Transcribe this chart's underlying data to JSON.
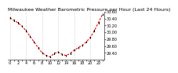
{
  "title": "Milwaukee Weather Barometric Pressure per Hour (Last 24 Hours)",
  "hours": [
    0,
    1,
    2,
    3,
    4,
    5,
    6,
    7,
    8,
    9,
    10,
    11,
    12,
    13,
    14,
    15,
    16,
    17,
    18,
    19,
    20,
    21,
    22,
    23
  ],
  "pressure": [
    30.42,
    30.35,
    30.28,
    30.18,
    30.05,
    29.88,
    29.72,
    29.55,
    29.4,
    29.32,
    29.28,
    29.38,
    29.42,
    29.35,
    29.32,
    29.38,
    29.48,
    29.55,
    29.62,
    29.72,
    29.85,
    30.05,
    30.28,
    30.52
  ],
  "ylim_min": 29.2,
  "ylim_max": 30.6,
  "ytick_values": [
    29.4,
    29.6,
    29.8,
    30.0,
    30.2,
    30.4,
    30.6
  ],
  "grid_x": [
    0,
    4,
    8,
    12,
    16,
    20
  ],
  "bg_color": "#ffffff",
  "line_color": "#ff0000",
  "marker_color": "#000000",
  "grid_color": "#aaaaaa",
  "title_fontsize": 4.5,
  "tick_fontsize": 3.5
}
